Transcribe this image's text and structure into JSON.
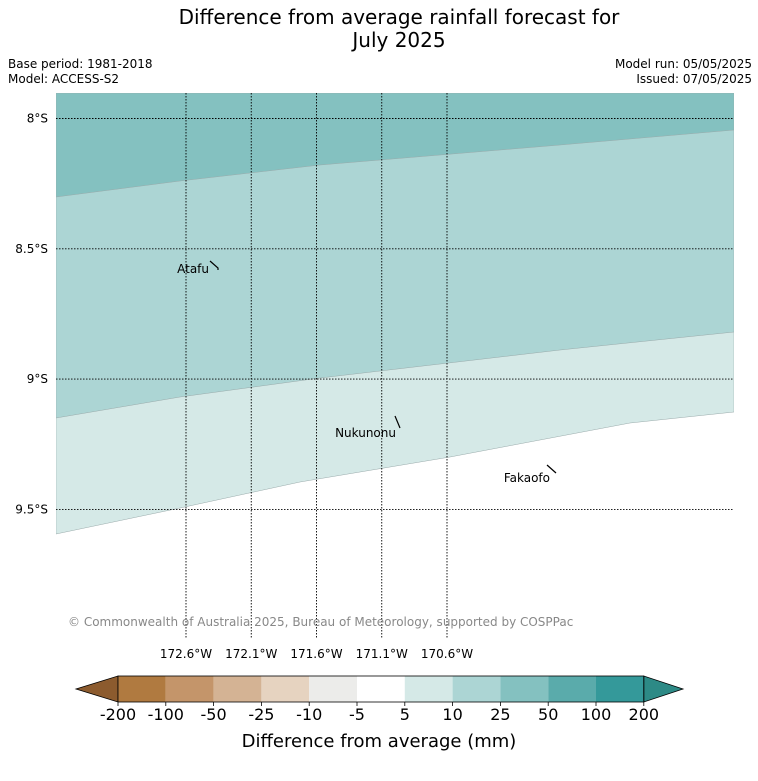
{
  "title_line1": "Difference from average rainfall forecast for",
  "title_line2": "July 2025",
  "base_period": "Base period: 1981-2018",
  "model": "Model: ACCESS-S2",
  "model_run": "Model run: 05/05/2025",
  "issued": "Issued: 07/05/2025",
  "copyright": "© Commonwealth of Australia 2025, Bureau of Meteorology, supported by COSPPac",
  "map": {
    "lon_range": [
      -172.1,
      -170.6
    ],
    "lat_range": [
      -8.0,
      -9.8
    ],
    "lon_ticks": [
      {
        "value": -172.6,
        "label": "172.6°W"
      },
      {
        "value": -172.1,
        "label": "172.1°W"
      },
      {
        "value": -171.6,
        "label": "171.6°W"
      },
      {
        "value": -171.1,
        "label": "171.1°W"
      },
      {
        "value": -170.6,
        "label": "170.6°W"
      }
    ],
    "lat_ticks": [
      {
        "value": -8.0,
        "label": "8°S"
      },
      {
        "value": -8.5,
        "label": "8.5°S"
      },
      {
        "value": -9.0,
        "label": "9°S"
      },
      {
        "value": -9.5,
        "label": "9.5°S"
      }
    ],
    "places": [
      {
        "name": "Atafu",
        "lon": -172.5,
        "lat": -8.55
      },
      {
        "name": "Nukunonu",
        "lon": -171.85,
        "lat": -9.18
      },
      {
        "name": "Fakaofo",
        "lon": -171.23,
        "lat": -9.38
      }
    ]
  },
  "colorbar": {
    "label": "Difference from average (mm)",
    "tick_labels": [
      "-200",
      "-100",
      "-50",
      "-25",
      "-10",
      "-5",
      "5",
      "10",
      "25",
      "50",
      "100",
      "200"
    ],
    "colors": [
      "#8c5b2e",
      "#b07a40",
      "#c4956a",
      "#d4b394",
      "#e6d3c0",
      "#ececea",
      "#ffffff",
      "#d5e9e7",
      "#acd5d4",
      "#84c1c0",
      "#5aabab",
      "#34999a",
      "#2d8a86"
    ]
  }
}
